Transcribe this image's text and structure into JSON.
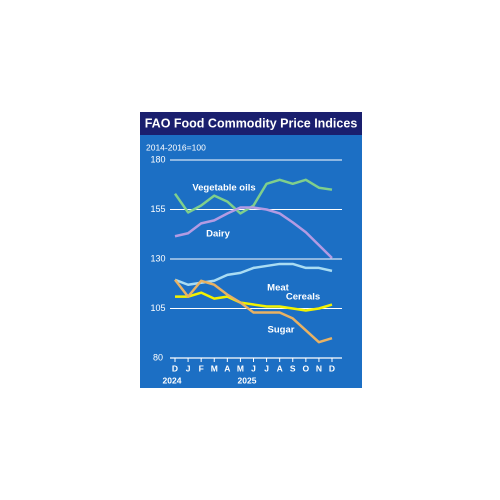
{
  "chart_data": {
    "type": "line",
    "title": "FAO Food Commodity Price Indices",
    "subtitle": "2014-2016=100",
    "categories": [
      "D",
      "J",
      "F",
      "M",
      "A",
      "M",
      "J",
      "J",
      "A",
      "S",
      "O",
      "N",
      "D"
    ],
    "year_labels": [
      "2024",
      "2025"
    ],
    "ylim": [
      80,
      180
    ],
    "yticks": [
      80,
      105,
      130,
      155,
      180
    ],
    "grid": true,
    "series": [
      {
        "name": "Vegetable oils",
        "color": "#7fcf8c",
        "values": [
          163,
          153.5,
          157,
          162,
          159,
          153,
          157,
          168,
          170,
          168,
          170,
          166,
          165
        ]
      },
      {
        "name": "Dairy",
        "color": "#b39be3",
        "values": [
          141.5,
          143,
          148,
          149.5,
          153,
          156,
          156,
          155,
          153,
          148.5,
          143.5,
          137,
          130.5
        ]
      },
      {
        "name": "Meat",
        "color": "#a9dcf3",
        "values": [
          119.5,
          117,
          118,
          119,
          122,
          123,
          125.5,
          126.5,
          127.5,
          127.5,
          125.5,
          125.5,
          124
        ]
      },
      {
        "name": "Cereals",
        "color": "#f2f200",
        "values": [
          111,
          111,
          113,
          110,
          111,
          108,
          107,
          106,
          106,
          105,
          104,
          105,
          107
        ]
      },
      {
        "name": "Sugar",
        "color": "#e9b263",
        "values": [
          119.5,
          111,
          119,
          117,
          112,
          108,
          103,
          103,
          103,
          100,
          94,
          88,
          90
        ]
      }
    ]
  }
}
